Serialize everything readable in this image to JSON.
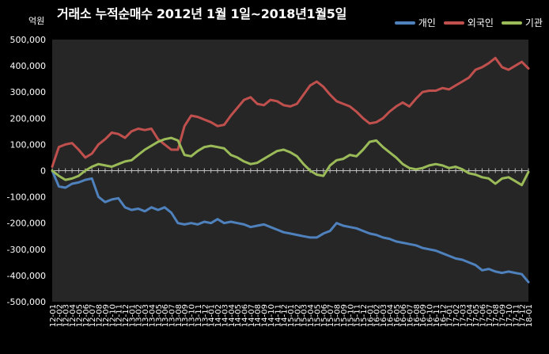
{
  "chart_data": {
    "type": "line",
    "title": "거래소 누적순매수 2012년 1월 1일~2018년1월5일",
    "ylabel": "억원",
    "xlabel": "",
    "ylim": [
      -500000,
      500000
    ],
    "yticks": [
      500000,
      400000,
      300000,
      200000,
      100000,
      0,
      -100000,
      -200000,
      -300000,
      -400000,
      -500000
    ],
    "ytick_labels": [
      "500,000",
      "400,000",
      "300,000",
      "200,000",
      "100,000",
      "0",
      "-100,000",
      "-200,000",
      "-300,000",
      "-400,000",
      "-500,000"
    ],
    "xtick_labels": [
      "12-01",
      "12-02",
      "12-03",
      "12-04",
      "12-05",
      "12-06",
      "12-07",
      "12-08",
      "12-09",
      "12-10",
      "12-11",
      "12-12",
      "13-01",
      "13-02",
      "13-03",
      "13-04",
      "13-05",
      "13-06",
      "13-07",
      "13-08",
      "13-09",
      "13-10",
      "13-11",
      "13-12",
      "14-01",
      "14-02",
      "14-03",
      "14-04",
      "14-05",
      "14-06",
      "14-07",
      "14-08",
      "14-09",
      "14-10",
      "14-11",
      "14-12",
      "15-01",
      "15-02",
      "15-03",
      "15-04",
      "15-05",
      "15-06",
      "15-07",
      "15-08",
      "15-09",
      "15-10",
      "15-11",
      "15-12",
      "16-01",
      "16-02",
      "16-03",
      "16-04",
      "16-05",
      "16-06",
      "16-07",
      "16-08",
      "16-09",
      "16-10",
      "16-11",
      "16-12",
      "17-01",
      "17-02",
      "17-03",
      "17-04",
      "17-05",
      "17-06",
      "17-07",
      "17-08",
      "17-09",
      "17-10",
      "17-11",
      "17-12",
      "18-01"
    ],
    "grid": false,
    "legend_position": "top-right",
    "series": [
      {
        "name": "개인",
        "color": "#4F81BD",
        "values": [
          0,
          -60000,
          -65000,
          -50000,
          -45000,
          -35000,
          -30000,
          -100000,
          -120000,
          -110000,
          -105000,
          -140000,
          -150000,
          -145000,
          -155000,
          -140000,
          -150000,
          -140000,
          -160000,
          -200000,
          -205000,
          -200000,
          -205000,
          -195000,
          -200000,
          -185000,
          -200000,
          -195000,
          -200000,
          -205000,
          -215000,
          -210000,
          -205000,
          -215000,
          -225000,
          -235000,
          -240000,
          -245000,
          -250000,
          -255000,
          -255000,
          -240000,
          -230000,
          -200000,
          -210000,
          -215000,
          -220000,
          -230000,
          -240000,
          -245000,
          -255000,
          -260000,
          -270000,
          -275000,
          -280000,
          -285000,
          -295000,
          -300000,
          -305000,
          -315000,
          -325000,
          -335000,
          -340000,
          -350000,
          -360000,
          -380000,
          -375000,
          -385000,
          -390000,
          -385000,
          -390000,
          -395000,
          -425000
        ]
      },
      {
        "name": "외국인",
        "color": "#C0504D",
        "values": [
          15000,
          90000,
          100000,
          105000,
          80000,
          50000,
          65000,
          100000,
          120000,
          145000,
          140000,
          125000,
          150000,
          160000,
          155000,
          160000,
          120000,
          100000,
          80000,
          80000,
          170000,
          210000,
          205000,
          195000,
          185000,
          170000,
          175000,
          210000,
          240000,
          270000,
          280000,
          255000,
          250000,
          270000,
          265000,
          250000,
          245000,
          255000,
          290000,
          325000,
          340000,
          320000,
          290000,
          265000,
          255000,
          245000,
          225000,
          200000,
          180000,
          185000,
          200000,
          225000,
          245000,
          260000,
          245000,
          275000,
          300000,
          305000,
          305000,
          315000,
          310000,
          325000,
          340000,
          355000,
          385000,
          395000,
          410000,
          430000,
          395000,
          385000,
          400000,
          415000,
          390000
        ]
      },
      {
        "name": "기관",
        "color": "#9BBB59",
        "values": [
          0,
          -20000,
          -35000,
          -30000,
          -20000,
          0,
          15000,
          25000,
          20000,
          15000,
          25000,
          35000,
          40000,
          60000,
          80000,
          95000,
          110000,
          120000,
          125000,
          115000,
          60000,
          55000,
          75000,
          90000,
          95000,
          90000,
          85000,
          60000,
          50000,
          35000,
          25000,
          30000,
          45000,
          60000,
          75000,
          80000,
          70000,
          55000,
          25000,
          0,
          -15000,
          -20000,
          20000,
          40000,
          45000,
          60000,
          55000,
          80000,
          110000,
          115000,
          90000,
          70000,
          50000,
          25000,
          10000,
          5000,
          10000,
          20000,
          25000,
          20000,
          10000,
          15000,
          5000,
          -10000,
          -15000,
          -25000,
          -30000,
          -50000,
          -30000,
          -25000,
          -40000,
          -55000,
          -5000
        ]
      }
    ]
  }
}
